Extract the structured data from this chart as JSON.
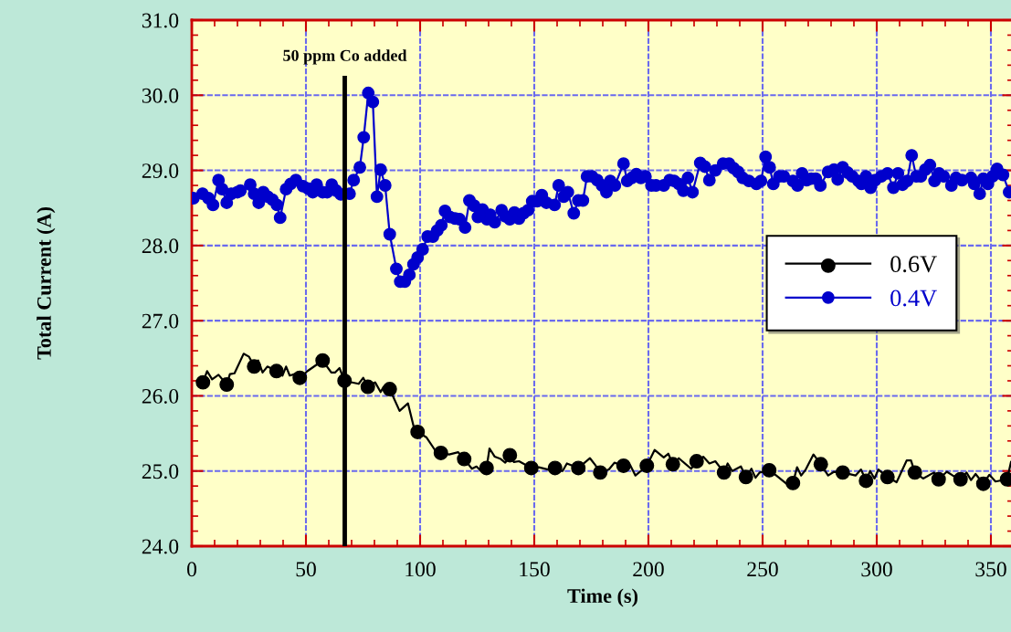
{
  "chart_data": {
    "type": "line",
    "xlabel": "Time (s)",
    "ylabel": "Total Current (A)",
    "xlim": [
      0,
      360
    ],
    "xticks": [
      0,
      50,
      100,
      150,
      200,
      250,
      300,
      350
    ],
    "ylim": [
      24,
      31
    ],
    "yticks": [
      {
        "value": 24,
        "label": "24.0"
      },
      {
        "value": 25,
        "label": "25.0"
      },
      {
        "value": 26,
        "label": "26.0"
      },
      {
        "value": 27,
        "label": "27.0"
      },
      {
        "value": 28,
        "label": "28.0"
      },
      {
        "value": 29,
        "label": "29.0"
      },
      {
        "value": 30,
        "label": "30.0"
      },
      {
        "value": 31,
        "label": "31.0"
      }
    ],
    "grid": true,
    "legend": "right",
    "ref_lines": [
      {
        "axis": "x",
        "value": 67,
        "label": "50 ppm Co added",
        "color": "#000000"
      }
    ],
    "series": [
      {
        "name": "0.6V",
        "color": "#000000",
        "marker": "none",
        "x": [
          3.3,
          4.9,
          6.7,
          8.9,
          11.7,
          15.3,
          16.7,
          18.7,
          22.7,
          25.1,
          27.3,
          29.1,
          31.0,
          33.1,
          37.1,
          39.7,
          41.3,
          42.9,
          45.0,
          47.3,
          50.7,
          57.3,
          61.1,
          62.7,
          64.7,
          66.9,
          73.1,
          75.1,
          77.1,
          80.3,
          82.7,
          84.0,
          86.7,
          91.0,
          94.7,
          97.1,
          98.9,
          102.7,
          106.7,
          109.1,
          112.7,
          116.7,
          119.3,
          122.7,
          124.7,
          126.7,
          129.1,
          130.4,
          132.7,
          135.3,
          137.3,
          139.3,
          141.1,
          143.3,
          148.7,
          152.0,
          156.0,
          159.1,
          162.4,
          164.3,
          169.3,
          174.4,
          176.7,
          178.9,
          182.7,
          185.1,
          189.1,
          192.0,
          194.3,
          196.7,
          199.3,
          202.7,
          206.7,
          208.7,
          210.7,
          213.3,
          218.7,
          221.1,
          224.0,
          226.7,
          229.3,
          233.1,
          234.7,
          236.7,
          240.5,
          242.7,
          245.1,
          246.9,
          248.7,
          252.9,
          256.0,
          261.3,
          263.3,
          265.1,
          266.9,
          268.7,
          272.3,
          275.5,
          278.7,
          281.3,
          285.1,
          290.7,
          293.1,
          295.3,
          297.1,
          299.0,
          300.7,
          304.7,
          308.7,
          313.1,
          315.0,
          316.7,
          320.3,
          325.1,
          327.1,
          330.7,
          333.3,
          336.7,
          339.3,
          341.3,
          343.3,
          346.7,
          349.3,
          352.0,
          357.1,
          358.8
        ],
        "values": [
          26.22,
          26.18,
          26.33,
          26.22,
          26.28,
          26.15,
          26.29,
          26.3,
          26.56,
          26.52,
          26.39,
          26.47,
          26.31,
          26.39,
          26.33,
          26.27,
          26.39,
          26.27,
          26.29,
          26.24,
          26.33,
          26.47,
          26.31,
          26.31,
          26.37,
          26.2,
          26.16,
          26.24,
          26.12,
          26.18,
          26.05,
          26.12,
          26.09,
          25.8,
          25.9,
          25.6,
          25.52,
          25.45,
          25.27,
          25.24,
          25.22,
          25.25,
          25.16,
          25.03,
          25.06,
          25.0,
          25.04,
          25.3,
          25.19,
          25.16,
          25.11,
          25.21,
          25.12,
          25.13,
          25.04,
          25.05,
          25.02,
          25.04,
          25.0,
          25.1,
          25.04,
          25.17,
          25.08,
          24.98,
          25.02,
          25.11,
          25.07,
          25.08,
          24.94,
          25.0,
          25.07,
          25.28,
          25.18,
          25.23,
          25.09,
          25.17,
          25.03,
          25.13,
          25.19,
          25.1,
          25.13,
          24.98,
          25.1,
          25.0,
          25.06,
          24.92,
          25.03,
          24.91,
          24.98,
          25.01,
          24.94,
          24.81,
          24.84,
          25.05,
          24.94,
          25.01,
          25.22,
          25.09,
          24.94,
          24.99,
          24.98,
          24.94,
          25.02,
          24.87,
          25.0,
          24.9,
          25.02,
          24.92,
          24.85,
          25.14,
          25.14,
          24.98,
          24.9,
          24.98,
          24.89,
          24.99,
          24.94,
          24.89,
          24.98,
          24.88,
          24.96,
          24.83,
          24.95,
          24.86,
          24.89,
          25.12
        ]
      },
      {
        "type": "scatter",
        "color": "#000000",
        "marker": "circle",
        "x": [
          4.9,
          15.3,
          27.3,
          37.1,
          47.3,
          57.3,
          66.9,
          77.1,
          86.7,
          98.9,
          109.1,
          119.3,
          129.1,
          139.3,
          148.7,
          159.1,
          169.3,
          178.9,
          189.1,
          199.3,
          210.7,
          221.1,
          233.1,
          242.7,
          252.9,
          263.3,
          275.5,
          285.1,
          295.3,
          304.7,
          316.7,
          327.1,
          336.7,
          346.7,
          357.1
        ],
        "values": [
          26.18,
          26.15,
          26.39,
          26.33,
          26.24,
          26.47,
          26.2,
          26.12,
          26.09,
          25.52,
          25.24,
          25.16,
          25.04,
          25.21,
          25.04,
          25.04,
          25.04,
          24.98,
          25.07,
          25.07,
          25.09,
          25.13,
          24.98,
          24.92,
          25.01,
          24.84,
          25.09,
          24.98,
          24.87,
          24.92,
          24.98,
          24.89,
          24.89,
          24.83,
          24.89
        ]
      },
      {
        "name": "0.4V",
        "color": "#0000cc",
        "marker": "circle",
        "x": [
          0.7,
          4.7,
          7.3,
          9.3,
          11.7,
          13.3,
          15.3,
          17.3,
          20.0,
          21.3,
          25.6,
          27.3,
          29.3,
          31.3,
          33.3,
          35.3,
          37.3,
          38.7,
          41.3,
          43.3,
          45.6,
          48.7,
          50.9,
          53.0,
          54.7,
          57.3,
          59.3,
          61.3,
          63.3,
          65.3,
          69.1,
          70.9,
          73.6,
          75.3,
          77.3,
          79.3,
          81.1,
          82.7,
          84.7,
          86.7,
          89.6,
          91.3,
          93.3,
          95.3,
          97.1,
          98.9,
          101.1,
          103.3,
          105.6,
          107.5,
          109.3,
          110.9,
          113.1,
          115.3,
          117.3,
          119.7,
          121.6,
          123.7,
          125.3,
          127.3,
          129.3,
          130.7,
          132.7,
          135.7,
          137.3,
          139.3,
          141.3,
          143.3,
          145.3,
          147.3,
          149.1,
          151.3,
          153.3,
          155.3,
          158.9,
          160.7,
          162.9,
          164.7,
          167.3,
          169.3,
          171.3,
          173.1,
          175.3,
          177.6,
          179.7,
          181.6,
          183.3,
          185.3,
          189.1,
          190.7,
          192.7,
          194.7,
          196.7,
          198.7,
          201.3,
          203.3,
          206.7,
          209.3,
          211.3,
          213.3,
          215.3,
          217.3,
          219.3,
          222.7,
          224.7,
          226.7,
          229.3,
          232.7,
          235.3,
          237.3,
          239.3,
          241.3,
          244.0,
          247.3,
          249.3,
          251.3,
          253.1,
          254.7,
          257.3,
          259.3,
          263.3,
          265.3,
          267.3,
          269.3,
          271.3,
          273.3,
          275.3,
          278.7,
          281.3,
          282.9,
          285.1,
          287.3,
          289.3,
          292.0,
          293.3,
          295.3,
          297.3,
          299.3,
          302.0,
          304.7,
          307.3,
          309.3,
          311.3,
          313.3,
          315.3,
          317.3,
          319.3,
          321.3,
          323.3,
          325.3,
          327.3,
          329.3,
          332.7,
          334.7,
          337.3,
          341.3,
          342.7,
          345.1,
          346.7,
          348.7,
          350.7,
          352.7,
          355.3,
          358.0
        ],
        "values": [
          28.63,
          28.69,
          28.63,
          28.54,
          28.87,
          28.75,
          28.57,
          28.69,
          28.71,
          28.73,
          28.81,
          28.69,
          28.57,
          28.71,
          28.65,
          28.61,
          28.54,
          28.37,
          28.75,
          28.82,
          28.87,
          28.79,
          28.76,
          28.71,
          28.81,
          28.71,
          28.71,
          28.81,
          28.73,
          28.68,
          28.69,
          28.87,
          29.04,
          29.44,
          30.03,
          29.91,
          28.65,
          29.01,
          28.8,
          28.15,
          27.69,
          27.52,
          27.52,
          27.61,
          27.75,
          27.84,
          27.95,
          28.12,
          28.12,
          28.2,
          28.27,
          28.46,
          28.38,
          28.36,
          28.35,
          28.24,
          28.6,
          28.53,
          28.38,
          28.48,
          28.35,
          28.41,
          28.31,
          28.47,
          28.39,
          28.35,
          28.44,
          28.36,
          28.43,
          28.47,
          28.59,
          28.59,
          28.67,
          28.57,
          28.54,
          28.8,
          28.65,
          28.71,
          28.43,
          28.6,
          28.6,
          28.92,
          28.92,
          28.87,
          28.8,
          28.71,
          28.86,
          28.8,
          29.09,
          28.86,
          28.9,
          28.95,
          28.9,
          28.92,
          28.8,
          28.8,
          28.8,
          28.87,
          28.86,
          28.82,
          28.73,
          28.9,
          28.71,
          29.1,
          29.05,
          28.87,
          29.0,
          29.09,
          29.09,
          29.03,
          28.98,
          28.9,
          28.86,
          28.82,
          28.86,
          29.18,
          29.04,
          28.82,
          28.92,
          28.92,
          28.86,
          28.8,
          28.96,
          28.87,
          28.89,
          28.89,
          28.8,
          28.98,
          29.01,
          28.88,
          29.04,
          28.97,
          28.92,
          28.86,
          28.82,
          28.92,
          28.77,
          28.87,
          28.92,
          28.96,
          28.77,
          28.96,
          28.81,
          28.86,
          29.2,
          28.92,
          28.92,
          29.01,
          29.07,
          28.86,
          28.96,
          28.92,
          28.8,
          28.9,
          28.87,
          28.9,
          28.82,
          28.69,
          28.89,
          28.82,
          28.92,
          29.02,
          28.94,
          28.71
        ]
      }
    ]
  }
}
